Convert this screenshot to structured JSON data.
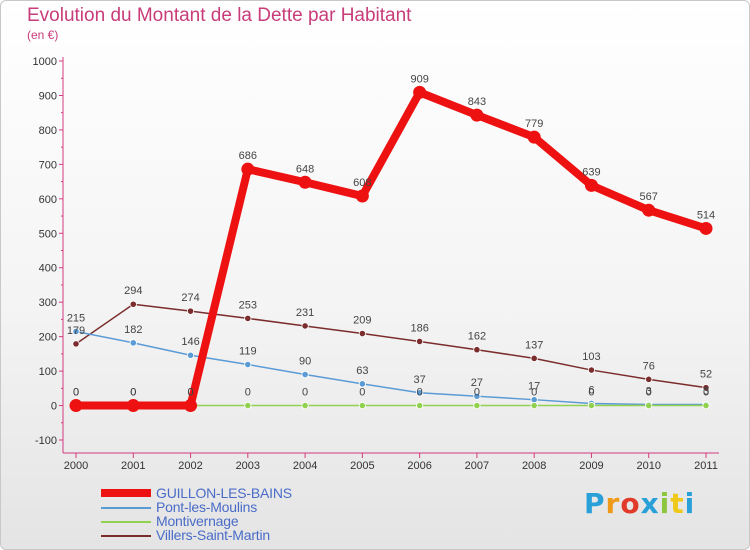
{
  "chart_data": {
    "type": "line",
    "title": "Evolution du Montant de la Dette par Habitant",
    "subtitle": "(en €)",
    "categories": [
      "2000",
      "2001",
      "2002",
      "2003",
      "2004",
      "2005",
      "2006",
      "2007",
      "2008",
      "2009",
      "2010",
      "2011"
    ],
    "ylim": [
      -100,
      1000
    ],
    "yticks": [
      -100,
      0,
      100,
      200,
      300,
      400,
      500,
      600,
      700,
      800,
      900,
      1000
    ],
    "grid": false,
    "legend_position": "bottom-left",
    "series": [
      {
        "name": "GUILLON-LES-BAINS",
        "color": "#ee1111",
        "emphasis": "thick",
        "values": [
          0,
          0,
          0,
          686,
          648,
          608,
          909,
          843,
          779,
          639,
          567,
          514
        ],
        "labels": [
          "0",
          "0",
          "0",
          "686",
          "648",
          "608",
          "909",
          "843",
          "779",
          "639",
          "567",
          "514"
        ]
      },
      {
        "name": "Pont-les-Moulins",
        "color": "#5b9bd5",
        "emphasis": "thin",
        "values": [
          215,
          182,
          146,
          119,
          90,
          63,
          37,
          27,
          17,
          6,
          3,
          3
        ],
        "labels": [
          "215",
          "182",
          "146",
          "119",
          "90",
          "63",
          "37",
          "27",
          "17",
          "6",
          "3",
          "3"
        ]
      },
      {
        "name": "Montivernage",
        "color": "#92d050",
        "emphasis": "thin",
        "values": [
          0,
          0,
          0,
          0,
          0,
          0,
          0,
          0,
          0,
          0,
          0,
          0
        ],
        "labels": [
          "0",
          "0",
          "0",
          "0",
          "0",
          "0",
          "0",
          "0",
          "0",
          "0",
          "0",
          "0"
        ]
      },
      {
        "name": "Villers-Saint-Martin",
        "color": "#7b2c2c",
        "emphasis": "thin",
        "values": [
          179,
          294,
          274,
          253,
          231,
          209,
          186,
          162,
          137,
          103,
          76,
          52
        ],
        "labels": [
          "179",
          "294",
          "274",
          "253",
          "231",
          "209",
          "186",
          "162",
          "137",
          "103",
          "76",
          "52"
        ]
      }
    ]
  },
  "logo": {
    "letters": [
      "P",
      "r",
      "o",
      "x",
      "i",
      "t",
      "i"
    ]
  }
}
